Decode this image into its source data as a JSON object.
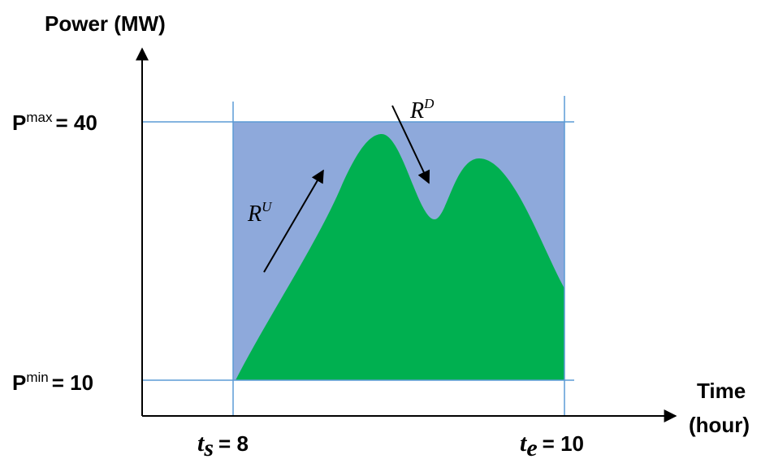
{
  "axes": {
    "y_title": "Power (MW)",
    "x_title": [
      "Time",
      "(hour)"
    ]
  },
  "levels": [
    {
      "symbol": "P",
      "superscript": "max",
      "equals": "= 40"
    },
    {
      "symbol": "P",
      "superscript": "min",
      "equals": "= 10"
    }
  ],
  "times": [
    {
      "symbol": "t",
      "subscript": "s",
      "equals": "= 8"
    },
    {
      "symbol": "t",
      "subscript": "e",
      "equals": "= 10"
    }
  ],
  "ramps": [
    {
      "symbol": "R",
      "superscript": "U"
    },
    {
      "symbol": "R",
      "superscript": "D"
    }
  ]
}
